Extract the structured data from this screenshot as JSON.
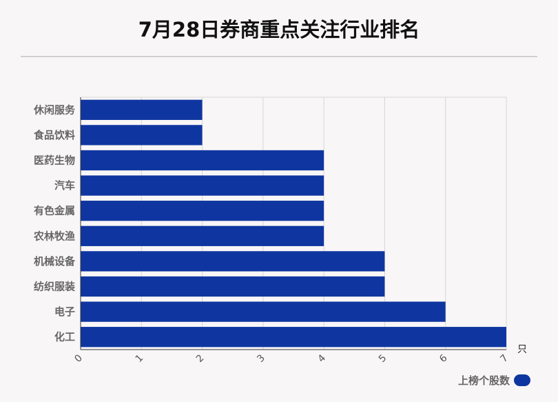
{
  "title": "7月28日券商重点关注行业排名",
  "chart_data": {
    "type": "bar",
    "orientation": "horizontal",
    "categories": [
      "休闲服务",
      "食品饮料",
      "医药生物",
      "汽车",
      "有色金属",
      "农林牧渔",
      "机械设备",
      "纺织服装",
      "电子",
      "化工"
    ],
    "series": [
      {
        "name": "上榜个股数",
        "values": [
          2,
          2,
          4,
          4,
          4,
          4,
          5,
          5,
          6,
          7
        ]
      }
    ],
    "xlim": [
      0,
      7
    ],
    "x_ticks": [
      0,
      1,
      2,
      3,
      4,
      5,
      6,
      7
    ],
    "x_unit": "只",
    "grid": true,
    "legend_position": "bottom-right",
    "bar_color": "#0f36a0"
  }
}
